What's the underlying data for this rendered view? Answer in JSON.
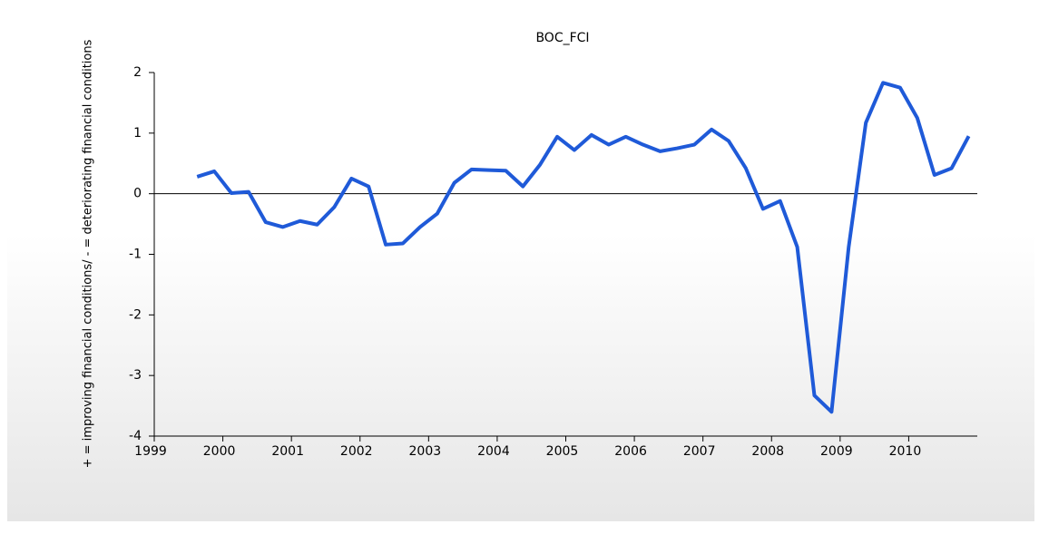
{
  "chart_data": {
    "type": "line",
    "title": "BOC_FCI",
    "y_axis_label": "+ = improving financial conditions/ - = deteriorating financial conditions",
    "categories": [
      "1999",
      null,
      null,
      null,
      "2000",
      null,
      null,
      null,
      "2001",
      null,
      null,
      null,
      "2002",
      null,
      null,
      null,
      "2003",
      null,
      null,
      null,
      "2004",
      null,
      null,
      null,
      "2005",
      null,
      null,
      null,
      "2006",
      null,
      null,
      null,
      "2007",
      null,
      null,
      null,
      "2008",
      null,
      null,
      null,
      "2009",
      null,
      null,
      null,
      "2010",
      null,
      null,
      null
    ],
    "series": [
      {
        "name": "BOC_FCI",
        "color": "#1f5ad8",
        "values": [
          null,
          null,
          0.28,
          0.37,
          0.01,
          0.03,
          -0.47,
          -0.55,
          -0.45,
          -0.51,
          -0.22,
          0.25,
          0.12,
          -0.84,
          -0.82,
          -0.55,
          -0.33,
          0.18,
          0.4,
          0.39,
          0.38,
          0.12,
          0.48,
          0.94,
          0.72,
          0.97,
          0.81,
          0.94,
          0.81,
          0.7,
          0.75,
          0.81,
          1.06,
          0.87,
          0.42,
          -0.25,
          -0.12,
          -0.88,
          -3.33,
          -3.6,
          -0.88,
          1.17,
          1.83,
          1.75,
          1.25,
          0.31,
          0.42,
          0.95
        ]
      }
    ],
    "ylim": [
      -4,
      2
    ],
    "yticks": [
      -4,
      -3,
      -2,
      -1,
      0,
      1,
      2
    ],
    "zero_line": true,
    "grid": false
  }
}
